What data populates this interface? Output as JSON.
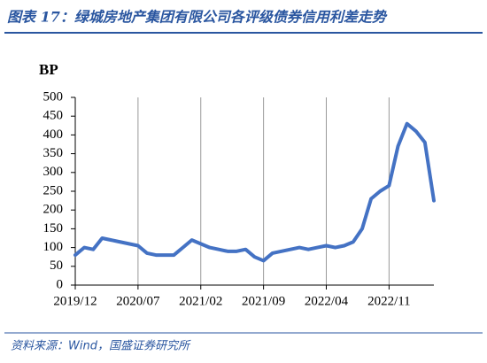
{
  "header": {
    "title": "图表 17：绿城房地产集团有限公司各评级债券信用利差走势"
  },
  "chart_data": {
    "type": "line",
    "y_label": "BP",
    "categories": [
      "2019/12",
      null,
      null,
      null,
      null,
      null,
      null,
      "2020/07",
      null,
      null,
      null,
      null,
      null,
      null,
      "2021/02",
      null,
      null,
      null,
      null,
      null,
      null,
      "2021/09",
      null,
      null,
      null,
      null,
      null,
      null,
      "2022/04",
      null,
      null,
      null,
      null,
      null,
      null,
      "2022/11",
      null,
      null,
      null,
      null,
      null
    ],
    "series": [
      {
        "color": "#4472c4",
        "values": [
          80,
          100,
          95,
          125,
          120,
          115,
          110,
          105,
          85,
          80,
          80,
          80,
          100,
          120,
          110,
          100,
          95,
          90,
          90,
          95,
          75,
          65,
          85,
          90,
          95,
          100,
          95,
          100,
          105,
          100,
          105,
          115,
          150,
          230,
          250,
          265,
          370,
          430,
          410,
          380,
          225
        ]
      }
    ],
    "ylim": [
      0,
      500
    ],
    "yticks": [
      0,
      50,
      100,
      150,
      200,
      250,
      300,
      350,
      400,
      450,
      500
    ],
    "grid": true
  },
  "footer": {
    "source": "资料来源：Wind，国盛证券研究所"
  }
}
